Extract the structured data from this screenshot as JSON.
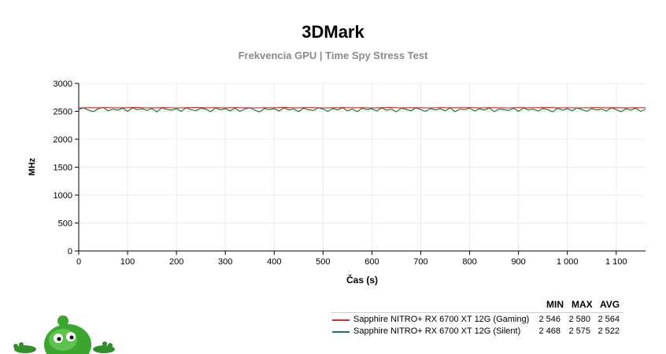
{
  "title": "3DMark",
  "subtitle": "Frekvencia GPU | Time Spy Stress Test",
  "chart_data": {
    "type": "line",
    "xlabel": "Čas (s)",
    "ylabel": "MHz",
    "xlim": [
      0,
      1160
    ],
    "ylim": [
      0,
      3000
    ],
    "x_ticks": [
      0,
      100,
      200,
      300,
      400,
      500,
      600,
      700,
      800,
      900,
      1000,
      1100
    ],
    "x_tick_labels": [
      "0",
      "100",
      "200",
      "300",
      "400",
      "500",
      "600",
      "700",
      "800",
      "900",
      "1 000",
      "1 100"
    ],
    "y_ticks": [
      0,
      500,
      1000,
      1500,
      2000,
      2500,
      3000
    ],
    "y_tick_labels": [
      "0",
      "500",
      "1000",
      "1500",
      "2000",
      "2500",
      "3000"
    ],
    "grid": true,
    "legend_position": "bottom-right",
    "series": [
      {
        "name": "Sapphire NITRO+ RX 6700 XT 12G (Gaming)",
        "color": "#d92b2b",
        "x": [
          0,
          20,
          40,
          60,
          80,
          100,
          120,
          140,
          160,
          180,
          200,
          220,
          240,
          260,
          280,
          300,
          320,
          340,
          360,
          380,
          400,
          420,
          440,
          460,
          480,
          500,
          520,
          540,
          560,
          580,
          600,
          620,
          640,
          660,
          680,
          700,
          720,
          740,
          760,
          780,
          800,
          820,
          840,
          860,
          880,
          900,
          920,
          940,
          960,
          980,
          1000,
          1020,
          1040,
          1060,
          1080,
          1100,
          1120,
          1140,
          1160
        ],
        "values": [
          2560,
          2566,
          2563,
          2568,
          2562,
          2565,
          2570,
          2561,
          2564,
          2567,
          2560,
          2565,
          2569,
          2563,
          2566,
          2562,
          2568,
          2564,
          2561,
          2566,
          2563,
          2570,
          2562,
          2565,
          2567,
          2561,
          2564,
          2568,
          2563,
          2566,
          2560,
          2565,
          2569,
          2562,
          2566,
          2564,
          2561,
          2567,
          2563,
          2565,
          2568,
          2562,
          2566,
          2564,
          2560,
          2567,
          2563,
          2565,
          2569,
          2562,
          2566,
          2561,
          2564,
          2568,
          2563,
          2565,
          2562,
          2566,
          2564
        ]
      },
      {
        "name": "Sapphire NITRO+ RX 6700 XT 12G (Silent)",
        "color": "#1e7a4a",
        "x": [
          0,
          10,
          20,
          30,
          40,
          50,
          60,
          70,
          80,
          90,
          100,
          110,
          120,
          130,
          140,
          150,
          160,
          170,
          180,
          190,
          200,
          210,
          220,
          230,
          240,
          250,
          260,
          270,
          280,
          290,
          300,
          310,
          320,
          330,
          340,
          350,
          360,
          370,
          380,
          390,
          400,
          410,
          420,
          430,
          440,
          450,
          460,
          470,
          480,
          490,
          500,
          510,
          520,
          530,
          540,
          550,
          560,
          570,
          580,
          590,
          600,
          610,
          620,
          630,
          640,
          650,
          660,
          670,
          680,
          690,
          700,
          710,
          720,
          730,
          740,
          750,
          760,
          770,
          780,
          790,
          800,
          810,
          820,
          830,
          840,
          850,
          860,
          870,
          880,
          890,
          900,
          910,
          920,
          930,
          940,
          950,
          960,
          970,
          980,
          990,
          1000,
          1010,
          1020,
          1030,
          1040,
          1050,
          1060,
          1070,
          1080,
          1090,
          1100,
          1110,
          1120,
          1130,
          1140,
          1150,
          1160
        ],
        "values": [
          2535,
          2560,
          2520,
          2495,
          2545,
          2570,
          2510,
          2540,
          2520,
          2555,
          2500,
          2560,
          2530,
          2545,
          2515,
          2550,
          2490,
          2560,
          2535,
          2520,
          2550,
          2500,
          2565,
          2530,
          2510,
          2555,
          2540,
          2495,
          2560,
          2525,
          2545,
          2510,
          2555,
          2500,
          2540,
          2565,
          2520,
          2490,
          2550,
          2530,
          2545,
          2505,
          2560,
          2525,
          2540,
          2495,
          2555,
          2530,
          2515,
          2560,
          2540,
          2500,
          2550,
          2525,
          2565,
          2510,
          2540,
          2495,
          2555,
          2530,
          2545,
          2505,
          2560,
          2520,
          2540,
          2490,
          2555,
          2535,
          2510,
          2560,
          2530,
          2500,
          2550,
          2525,
          2545,
          2510,
          2560,
          2495,
          2540,
          2530,
          2555,
          2505,
          2545,
          2520,
          2560,
          2495,
          2540,
          2530,
          2515,
          2555,
          2500,
          2560,
          2525,
          2540,
          2505,
          2550,
          2530,
          2490,
          2555,
          2520,
          2545,
          2510,
          2560,
          2530,
          2500,
          2550,
          2525,
          2540,
          2505,
          2560,
          2530,
          2495,
          2545,
          2520,
          2555,
          2500,
          2535
        ]
      }
    ]
  },
  "legend_table": {
    "headers": {
      "min": "MIN",
      "max": "MAX",
      "avg": "AVG"
    },
    "rows": [
      {
        "name": "Sapphire NITRO+ RX 6700 XT 12G (Gaming)",
        "color": "#d92b2b",
        "min": "2 546",
        "max": "2 580",
        "avg": "2 564"
      },
      {
        "name": "Sapphire NITRO+ RX 6700 XT 12G (Silent)",
        "color": "#1e7a4a",
        "min": "2 468",
        "max": "2 575",
        "avg": "2 522"
      }
    ]
  },
  "mascot_icon": "green-alien-mascot-icon"
}
